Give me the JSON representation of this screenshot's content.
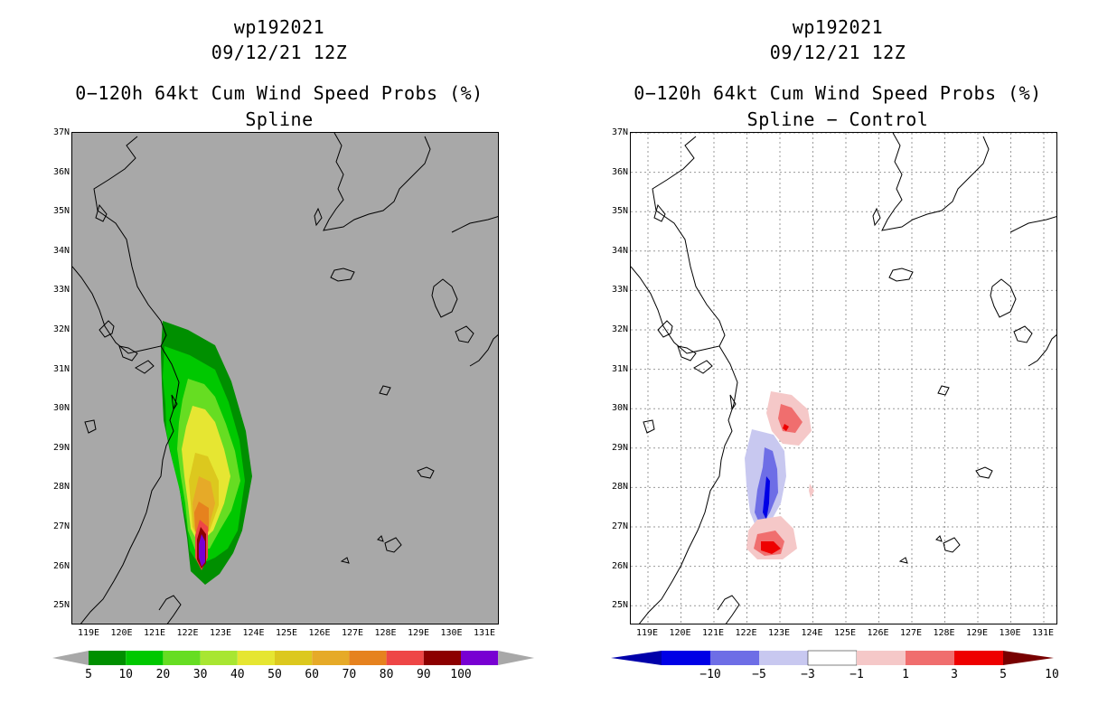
{
  "left_panel": {
    "title_lines": [
      "wp192021",
      "09/12/21 12Z",
      "0−120h 64kt Cum Wind Speed Probs (%)",
      "Spline"
    ],
    "colorbar": {
      "labels": [
        "5",
        "10",
        "20",
        "30",
        "40",
        "50",
        "60",
        "70",
        "80",
        "90",
        "100"
      ],
      "colors": [
        "#008f00",
        "#00c800",
        "#66dd22",
        "#a8e632",
        "#e6e632",
        "#dcc81e",
        "#e6aa28",
        "#e6821e",
        "#ee4646",
        "#8c0000",
        "#7800d2"
      ],
      "end_color": "#a8a8a8"
    },
    "background": "#a8a8a8"
  },
  "right_panel": {
    "title_lines": [
      "wp192021",
      "09/12/21 12Z",
      "0−120h 64kt Cum Wind Speed Probs (%)",
      "Spline − Control"
    ],
    "colorbar": {
      "labels": [
        "−10",
        "−5",
        "−3",
        "−1",
        "1",
        "3",
        "5",
        "10"
      ],
      "colors": [
        "#0000aa",
        "#0000e6",
        "#6e6ee6",
        "#c8c8f0",
        "#ffffff",
        "#f5c8c8",
        "#f06e6e",
        "#ee0000",
        "#780000"
      ]
    },
    "background": "#ffffff"
  },
  "axes": {
    "lat_labels": [
      "37N",
      "36N",
      "35N",
      "34N",
      "33N",
      "32N",
      "31N",
      "30N",
      "29N",
      "28N",
      "27N",
      "26N",
      "25N"
    ],
    "lon_labels": [
      "119E",
      "120E",
      "121E",
      "122E",
      "123E",
      "124E",
      "125E",
      "126E",
      "127E",
      "128E",
      "129E",
      "130E",
      "131E"
    ]
  }
}
